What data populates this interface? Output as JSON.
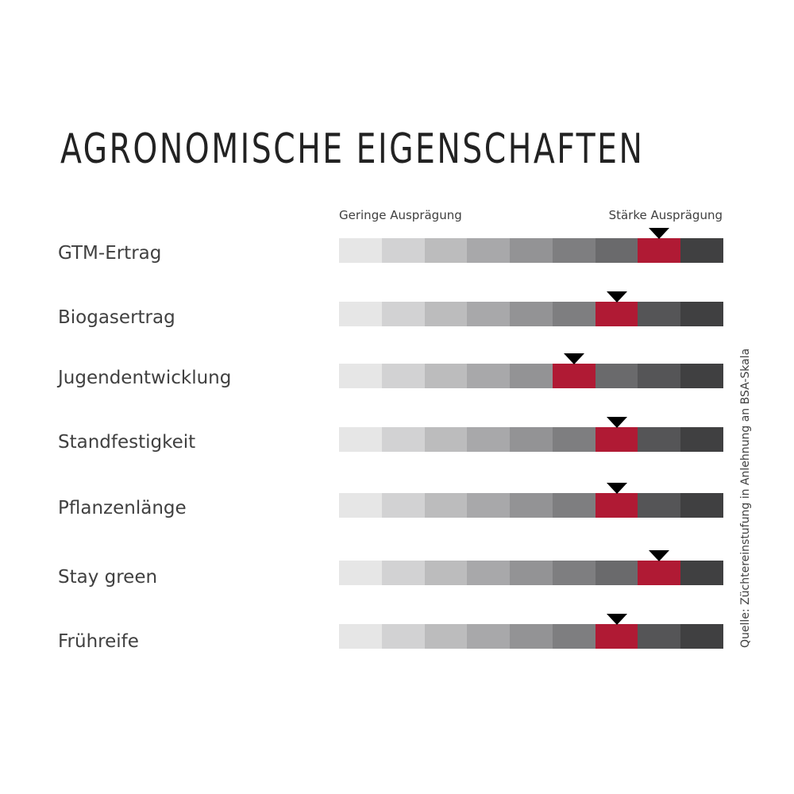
{
  "chart_data": {
    "type": "table",
    "title": "Agronomische Eigenschaften",
    "scale_low_label": "Geringe Ausprägung",
    "scale_high_label": "Stärke Ausprägung",
    "scale_steps": 9,
    "source": "Quelle: Züchtereinstufung in Anlehnung an  BSA-Skala",
    "segment_colors": [
      "#e6e6e6",
      "#d2d2d3",
      "#bcbcbd",
      "#a8a8aa",
      "#939395",
      "#7e7e80",
      "#6a6a6c",
      "#555557",
      "#404041"
    ],
    "highlight_color": "#b01a34",
    "traits": [
      {
        "name": "GTM-Ertrag",
        "value": 8
      },
      {
        "name": "Biogasertrag",
        "value": 7
      },
      {
        "name": "Jugendentwicklung",
        "value": 6
      },
      {
        "name": "Standfestigkeit",
        "value": 7
      },
      {
        "name": "Pflanzenlänge",
        "value": 7
      },
      {
        "name": "Stay green",
        "value": 8
      },
      {
        "name": "Frühreife",
        "value": 7
      }
    ]
  }
}
